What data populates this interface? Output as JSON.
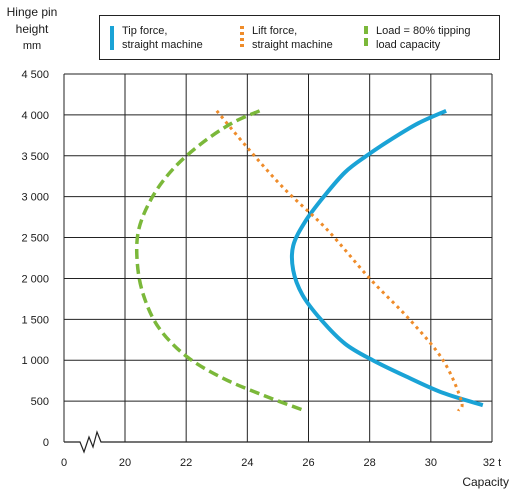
{
  "chart_data": {
    "type": "line",
    "ylabel": "Hinge pin height",
    "yunit": "mm",
    "xlabel": "Capacity",
    "xlim": [
      0,
      32
    ],
    "ylim": [
      0,
      4500
    ],
    "axis_break": "x between 0 and 20",
    "x_ticks": [
      {
        "value": 0,
        "label": "0"
      },
      {
        "value": 20,
        "label": "20"
      },
      {
        "value": 22,
        "label": "22"
      },
      {
        "value": 24,
        "label": "24"
      },
      {
        "value": 26,
        "label": "26"
      },
      {
        "value": 28,
        "label": "28"
      },
      {
        "value": 30,
        "label": "30"
      },
      {
        "value": 32,
        "label": "32 t"
      }
    ],
    "y_ticks": [
      {
        "value": 0,
        "label": "0"
      },
      {
        "value": 500,
        "label": "500"
      },
      {
        "value": 1000,
        "label": "1 000"
      },
      {
        "value": 1500,
        "label": "1 500"
      },
      {
        "value": 2000,
        "label": "2 000"
      },
      {
        "value": 2500,
        "label": "2 500"
      },
      {
        "value": 3000,
        "label": "3 000"
      },
      {
        "value": 3500,
        "label": "3 500"
      },
      {
        "value": 4000,
        "label": "4 000"
      },
      {
        "value": 4500,
        "label": "4 500"
      }
    ],
    "grid": true,
    "legend_position": "top",
    "series": [
      {
        "name": "Tip force, straight machine",
        "style": "solid",
        "color": "#1aa3d6",
        "points": [
          [
            30.5,
            4050
          ],
          [
            29.6,
            3900
          ],
          [
            28.7,
            3700
          ],
          [
            27.9,
            3500
          ],
          [
            27.2,
            3300
          ],
          [
            26.5,
            3000
          ],
          [
            25.9,
            2700
          ],
          [
            25.5,
            2400
          ],
          [
            25.5,
            2100
          ],
          [
            25.8,
            1800
          ],
          [
            26.4,
            1500
          ],
          [
            27.2,
            1200
          ],
          [
            28.1,
            1000
          ],
          [
            29.2,
            800
          ],
          [
            30.4,
            600
          ],
          [
            31.7,
            450
          ]
        ]
      },
      {
        "name": "Lift force, straight machine",
        "style": "dotted",
        "color": "#ef8c2a",
        "points": [
          [
            23.0,
            4050
          ],
          [
            24.0,
            3600
          ],
          [
            25.2,
            3100
          ],
          [
            26.6,
            2600
          ],
          [
            28.0,
            2000
          ],
          [
            29.3,
            1500
          ],
          [
            30.4,
            1000
          ],
          [
            31.0,
            500
          ],
          [
            30.9,
            380
          ]
        ]
      },
      {
        "name": "Load = 80% tipping load capacity",
        "style": "dashed",
        "color": "#7bb83a",
        "points": [
          [
            24.4,
            4050
          ],
          [
            23.5,
            3900
          ],
          [
            22.5,
            3650
          ],
          [
            21.6,
            3350
          ],
          [
            20.9,
            3000
          ],
          [
            20.45,
            2600
          ],
          [
            20.4,
            2200
          ],
          [
            20.6,
            1800
          ],
          [
            21.1,
            1400
          ],
          [
            22.0,
            1050
          ],
          [
            23.2,
            780
          ],
          [
            24.6,
            560
          ],
          [
            25.9,
            380
          ]
        ]
      }
    ]
  },
  "legend": {
    "items": [
      {
        "label": "Tip force,\nstraight machine"
      },
      {
        "label": "Lift force,\nstraight machine"
      },
      {
        "label": "Load = 80% tipping\nload capacity"
      }
    ]
  },
  "ylabel_text": "Hinge pin\nheight",
  "yunit_text": "mm",
  "xlabel_text": "Capacity"
}
